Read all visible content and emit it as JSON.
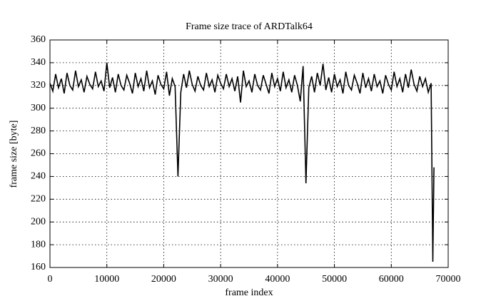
{
  "chart_data": {
    "type": "line",
    "title": "Frame size trace of ARDTalk64",
    "x_label": "frame index",
    "y_label": "frame size [byte]",
    "xlim": [
      0,
      70000
    ],
    "ylim": [
      160,
      360
    ],
    "xticks": [
      0,
      10000,
      20000,
      30000,
      40000,
      50000,
      60000,
      70000
    ],
    "yticks": [
      160,
      180,
      200,
      220,
      240,
      260,
      280,
      300,
      320,
      340,
      360
    ],
    "grid": true,
    "x": [
      0,
      500,
      1000,
      1500,
      2000,
      2500,
      3000,
      3500,
      4000,
      4500,
      5000,
      5500,
      6000,
      6500,
      7000,
      7500,
      8000,
      8500,
      9000,
      9500,
      10000,
      10500,
      11000,
      11500,
      12000,
      12500,
      13000,
      13500,
      14000,
      14500,
      15000,
      15500,
      16000,
      16500,
      17000,
      17500,
      18000,
      18500,
      19000,
      19500,
      20000,
      20500,
      21000,
      21500,
      22000,
      22500,
      23000,
      23500,
      24000,
      24500,
      25000,
      25500,
      26000,
      26500,
      27000,
      27500,
      28000,
      28500,
      29000,
      29500,
      30000,
      30500,
      31000,
      31500,
      32000,
      32500,
      33000,
      33500,
      34000,
      34500,
      35000,
      35500,
      36000,
      36500,
      37000,
      37500,
      38000,
      38500,
      39000,
      39500,
      40000,
      40500,
      41000,
      41500,
      42000,
      42500,
      43000,
      43500,
      44000,
      44500,
      45000,
      45500,
      46000,
      46500,
      47000,
      47500,
      48000,
      48500,
      49000,
      49500,
      50000,
      50500,
      51000,
      51500,
      52000,
      52500,
      53000,
      53500,
      54000,
      54500,
      55000,
      55500,
      56000,
      56500,
      57000,
      57500,
      58000,
      58500,
      59000,
      59500,
      60000,
      60500,
      61000,
      61500,
      62000,
      62500,
      63000,
      63500,
      64000,
      64500,
      65000,
      65500,
      66000,
      66500,
      67000,
      67300,
      67500
    ],
    "series": [
      {
        "color": "#000000",
        "values": [
          322,
          315,
          330,
          318,
          326,
          313,
          331,
          320,
          316,
          333,
          319,
          325,
          314,
          328,
          321,
          317,
          332,
          319,
          324,
          315,
          340,
          318,
          327,
          314,
          330,
          320,
          316,
          329,
          322,
          313,
          331,
          319,
          326,
          315,
          333,
          318,
          324,
          312,
          329,
          321,
          317,
          332,
          311,
          326,
          319,
          240,
          314,
          330,
          318,
          333,
          321,
          315,
          328,
          320,
          316,
          331,
          319,
          325,
          314,
          329,
          322,
          317,
          330,
          319,
          326,
          315,
          328,
          305,
          333,
          319,
          324,
          314,
          330,
          320,
          316,
          329,
          321,
          313,
          331,
          319,
          326,
          315,
          332,
          318,
          325,
          314,
          329,
          320,
          306,
          337,
          234,
          318,
          328,
          314,
          331,
          320,
          339,
          316,
          327,
          314,
          330,
          319,
          325,
          313,
          332,
          320,
          316,
          329,
          322,
          313,
          331,
          318,
          326,
          315,
          330,
          319,
          324,
          313,
          329,
          321,
          316,
          332,
          319,
          326,
          314,
          330,
          318,
          334,
          321,
          315,
          328,
          319,
          326,
          314,
          322,
          165,
          248
        ]
      }
    ]
  }
}
